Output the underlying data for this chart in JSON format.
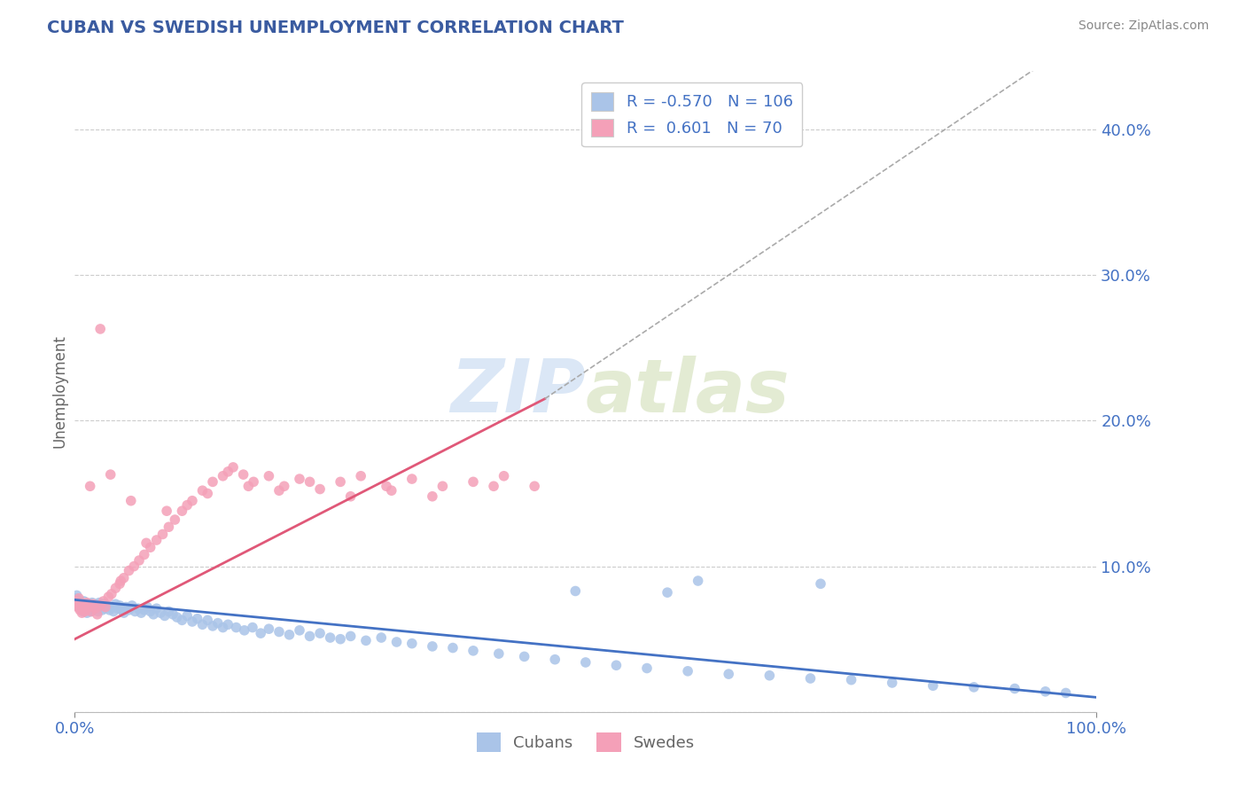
{
  "title": "CUBAN VS SWEDISH UNEMPLOYMENT CORRELATION CHART",
  "source_text": "Source: ZipAtlas.com",
  "ylabel": "Unemployment",
  "yaxis_ticks": [
    0.0,
    0.1,
    0.2,
    0.3,
    0.4
  ],
  "yaxis_labels": [
    "",
    "10.0%",
    "20.0%",
    "30.0%",
    "40.0%"
  ],
  "xlim": [
    0.0,
    1.0
  ],
  "ylim": [
    0.0,
    0.44
  ],
  "cubans_R": -0.57,
  "cubans_N": 106,
  "swedes_R": 0.601,
  "swedes_N": 70,
  "cuban_color": "#aac4e8",
  "swedish_color": "#f4a0b8",
  "cuban_line_color": "#4472c4",
  "swedish_line_color": "#e05878",
  "title_color": "#3a5ba0",
  "axis_label_color": "#4472c4",
  "tick_color": "#888888",
  "background_color": "#ffffff",
  "watermark_color": "#b8d0ee",
  "legend_color": "#4472c4",
  "grid_color": "#cccccc",
  "cuban_trend": [
    0.0,
    1.0,
    0.077,
    0.01
  ],
  "swedish_trend": [
    0.0,
    0.46,
    0.05,
    0.215
  ],
  "swedish_dashed_ext": [
    0.46,
    1.0,
    0.215,
    0.47
  ],
  "cubans_scatter_x": [
    0.001,
    0.002,
    0.003,
    0.004,
    0.005,
    0.006,
    0.007,
    0.008,
    0.009,
    0.01,
    0.011,
    0.012,
    0.013,
    0.014,
    0.015,
    0.016,
    0.017,
    0.018,
    0.019,
    0.02,
    0.021,
    0.022,
    0.023,
    0.024,
    0.025,
    0.026,
    0.027,
    0.028,
    0.029,
    0.03,
    0.032,
    0.034,
    0.036,
    0.038,
    0.04,
    0.042,
    0.044,
    0.046,
    0.048,
    0.05,
    0.053,
    0.056,
    0.059,
    0.062,
    0.065,
    0.068,
    0.071,
    0.074,
    0.077,
    0.08,
    0.084,
    0.088,
    0.092,
    0.096,
    0.1,
    0.105,
    0.11,
    0.115,
    0.12,
    0.125,
    0.13,
    0.135,
    0.14,
    0.145,
    0.15,
    0.158,
    0.166,
    0.174,
    0.182,
    0.19,
    0.2,
    0.21,
    0.22,
    0.23,
    0.24,
    0.25,
    0.26,
    0.27,
    0.285,
    0.3,
    0.315,
    0.33,
    0.35,
    0.37,
    0.39,
    0.415,
    0.44,
    0.47,
    0.5,
    0.53,
    0.56,
    0.6,
    0.64,
    0.68,
    0.72,
    0.76,
    0.8,
    0.84,
    0.88,
    0.92,
    0.95,
    0.97,
    0.61,
    0.73,
    0.49,
    0.58
  ],
  "cubans_scatter_y": [
    0.078,
    0.08,
    0.075,
    0.072,
    0.074,
    0.071,
    0.073,
    0.069,
    0.076,
    0.07,
    0.073,
    0.068,
    0.074,
    0.071,
    0.072,
    0.069,
    0.075,
    0.07,
    0.073,
    0.071,
    0.074,
    0.072,
    0.069,
    0.075,
    0.071,
    0.073,
    0.07,
    0.072,
    0.074,
    0.071,
    0.073,
    0.07,
    0.072,
    0.069,
    0.074,
    0.071,
    0.073,
    0.07,
    0.068,
    0.072,
    0.07,
    0.073,
    0.069,
    0.071,
    0.068,
    0.07,
    0.072,
    0.069,
    0.067,
    0.071,
    0.068,
    0.066,
    0.069,
    0.067,
    0.065,
    0.063,
    0.066,
    0.062,
    0.064,
    0.06,
    0.063,
    0.059,
    0.061,
    0.058,
    0.06,
    0.058,
    0.056,
    0.058,
    0.054,
    0.057,
    0.055,
    0.053,
    0.056,
    0.052,
    0.054,
    0.051,
    0.05,
    0.052,
    0.049,
    0.051,
    0.048,
    0.047,
    0.045,
    0.044,
    0.042,
    0.04,
    0.038,
    0.036,
    0.034,
    0.032,
    0.03,
    0.028,
    0.026,
    0.025,
    0.023,
    0.022,
    0.02,
    0.018,
    0.017,
    0.016,
    0.014,
    0.013,
    0.09,
    0.088,
    0.083,
    0.082
  ],
  "swedes_scatter_x": [
    0.001,
    0.002,
    0.003,
    0.004,
    0.005,
    0.006,
    0.007,
    0.008,
    0.009,
    0.01,
    0.012,
    0.014,
    0.016,
    0.018,
    0.02,
    0.022,
    0.025,
    0.028,
    0.03,
    0.033,
    0.036,
    0.04,
    0.044,
    0.048,
    0.053,
    0.058,
    0.063,
    0.068,
    0.074,
    0.08,
    0.086,
    0.092,
    0.098,
    0.105,
    0.115,
    0.125,
    0.135,
    0.145,
    0.155,
    0.165,
    0.175,
    0.19,
    0.205,
    0.22,
    0.24,
    0.26,
    0.28,
    0.305,
    0.33,
    0.36,
    0.39,
    0.42,
    0.45,
    0.025,
    0.035,
    0.045,
    0.015,
    0.055,
    0.07,
    0.09,
    0.11,
    0.13,
    0.15,
    0.17,
    0.2,
    0.23,
    0.27,
    0.31,
    0.35,
    0.41
  ],
  "swedes_scatter_y": [
    0.076,
    0.074,
    0.072,
    0.078,
    0.07,
    0.073,
    0.068,
    0.071,
    0.074,
    0.069,
    0.075,
    0.072,
    0.069,
    0.074,
    0.071,
    0.067,
    0.073,
    0.076,
    0.072,
    0.079,
    0.081,
    0.085,
    0.088,
    0.092,
    0.097,
    0.1,
    0.104,
    0.108,
    0.113,
    0.118,
    0.122,
    0.127,
    0.132,
    0.138,
    0.145,
    0.152,
    0.158,
    0.162,
    0.168,
    0.163,
    0.158,
    0.162,
    0.155,
    0.16,
    0.153,
    0.158,
    0.162,
    0.155,
    0.16,
    0.155,
    0.158,
    0.162,
    0.155,
    0.263,
    0.163,
    0.09,
    0.155,
    0.145,
    0.116,
    0.138,
    0.142,
    0.15,
    0.165,
    0.155,
    0.152,
    0.158,
    0.148,
    0.152,
    0.148,
    0.155
  ]
}
